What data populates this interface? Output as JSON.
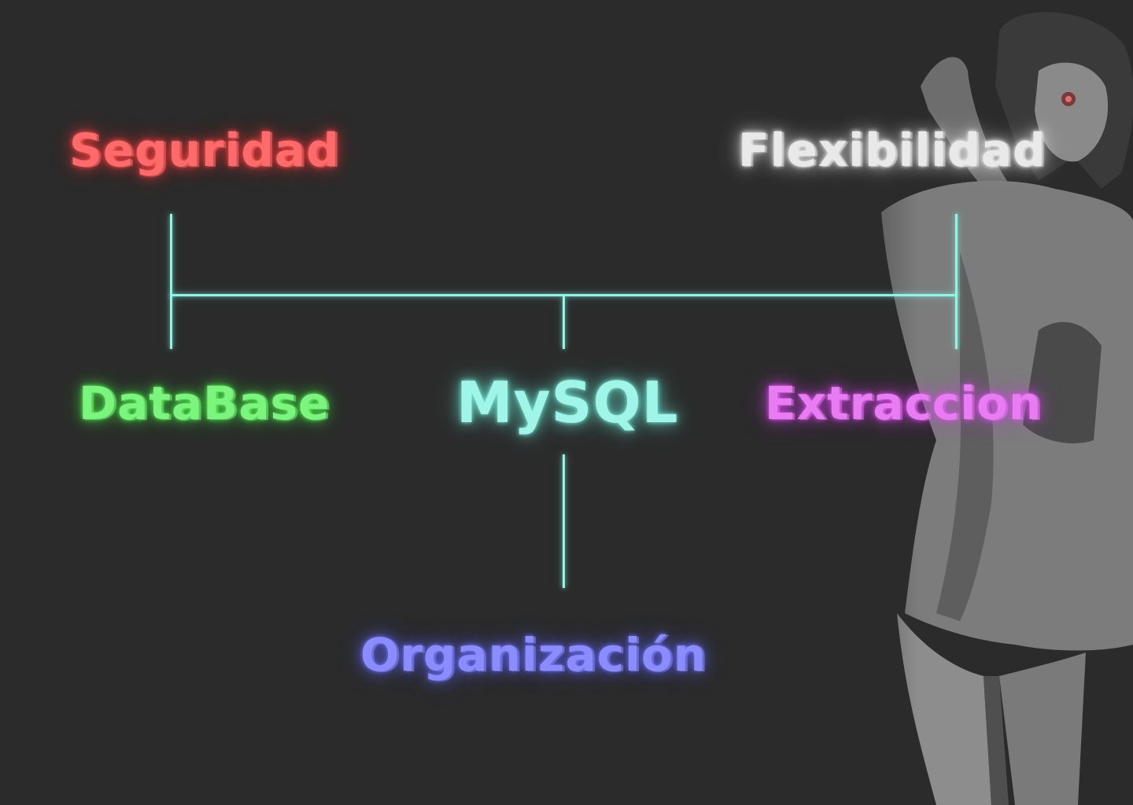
{
  "diagram": {
    "root": "MySQL",
    "nodes": {
      "seguridad": "Seguridad",
      "flexibilidad": "Flexibilidad",
      "database": "DataBase",
      "mysql": "MySQL",
      "extraccion": "Extraccion",
      "organizacion": "Organización"
    },
    "colors": {
      "background": "#2b2b2b",
      "connector": "#8ff5e6",
      "seguridad": "#ff6b6b",
      "flexibilidad": "#e9e9e9",
      "database": "#7cf57e",
      "mysql": "#9ff5e8",
      "extraccion": "#e87cf2",
      "organizacion": "#8a8cff"
    }
  }
}
